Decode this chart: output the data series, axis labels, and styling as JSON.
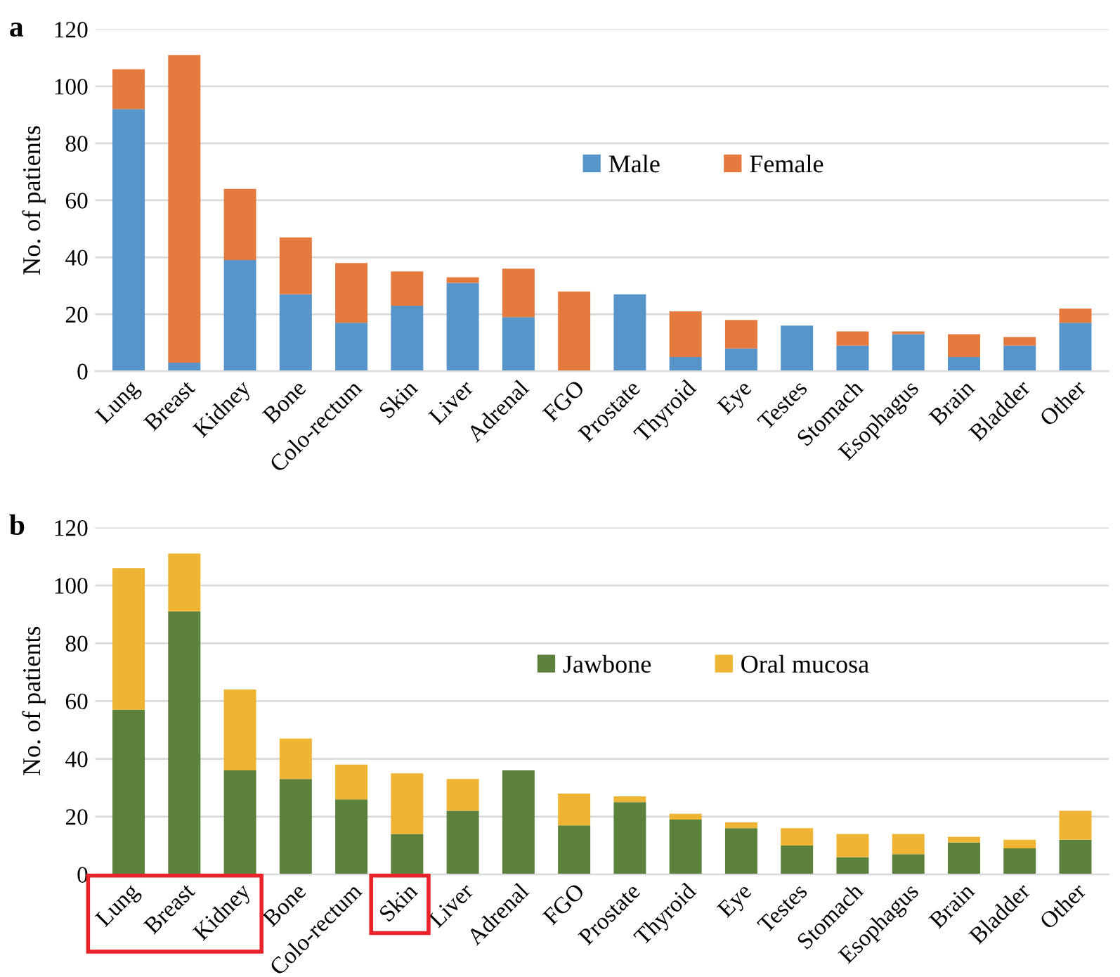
{
  "chart_data": [
    {
      "type": "bar",
      "title": "a",
      "ylabel": "No. of patients",
      "stacked": true,
      "categories": [
        "Lung",
        "Breast",
        "Kidney",
        "Bone",
        "Colo-rectum",
        "Skin",
        "Liver",
        "Adrenal",
        "FGO",
        "Prostate",
        "Thyroid",
        "Eye",
        "Testes",
        "Stomach",
        "Esophagus",
        "Brain",
        "Bladder",
        "Other"
      ],
      "series": [
        {
          "name": "Male",
          "color": "#5694c9",
          "values": [
            92,
            3,
            39,
            27,
            17,
            23,
            31,
            19,
            0,
            27,
            5,
            8,
            16,
            9,
            13,
            5,
            9,
            17
          ]
        },
        {
          "name": "Female",
          "color": "#e47a3e",
          "values": [
            14,
            108,
            25,
            20,
            21,
            12,
            2,
            17,
            28,
            0,
            16,
            10,
            0,
            5,
            1,
            8,
            3,
            5
          ]
        }
      ],
      "ylim": [
        0,
        120
      ],
      "yticks": [
        0,
        20,
        40,
        60,
        80,
        100,
        120
      ],
      "grid": "y",
      "legend": "center"
    },
    {
      "type": "bar",
      "title": "b",
      "ylabel": "No. of patients",
      "stacked": true,
      "categories": [
        "Lung",
        "Breast",
        "Kidney",
        "Bone",
        "Colo-rectum",
        "Skin",
        "Liver",
        "Adrenal",
        "FGO",
        "Prostate",
        "Thyroid",
        "Eye",
        "Testes",
        "Stomach",
        "Esophagus",
        "Brain",
        "Bladder",
        "Other"
      ],
      "series": [
        {
          "name": "Jawbone",
          "color": "#5b813c",
          "values": [
            57,
            91,
            36,
            33,
            26,
            14,
            22,
            36,
            17,
            25,
            19,
            16,
            10,
            6,
            7,
            11,
            9,
            12
          ]
        },
        {
          "name": "Oral mucosa",
          "color": "#efb434",
          "values": [
            49,
            20,
            28,
            14,
            12,
            21,
            11,
            0,
            11,
            2,
            2,
            2,
            6,
            8,
            7,
            2,
            3,
            10
          ]
        }
      ],
      "ylim": [
        0,
        120
      ],
      "yticks": [
        0,
        20,
        40,
        60,
        80,
        100,
        120
      ],
      "grid": "y",
      "legend": "center"
    }
  ]
}
